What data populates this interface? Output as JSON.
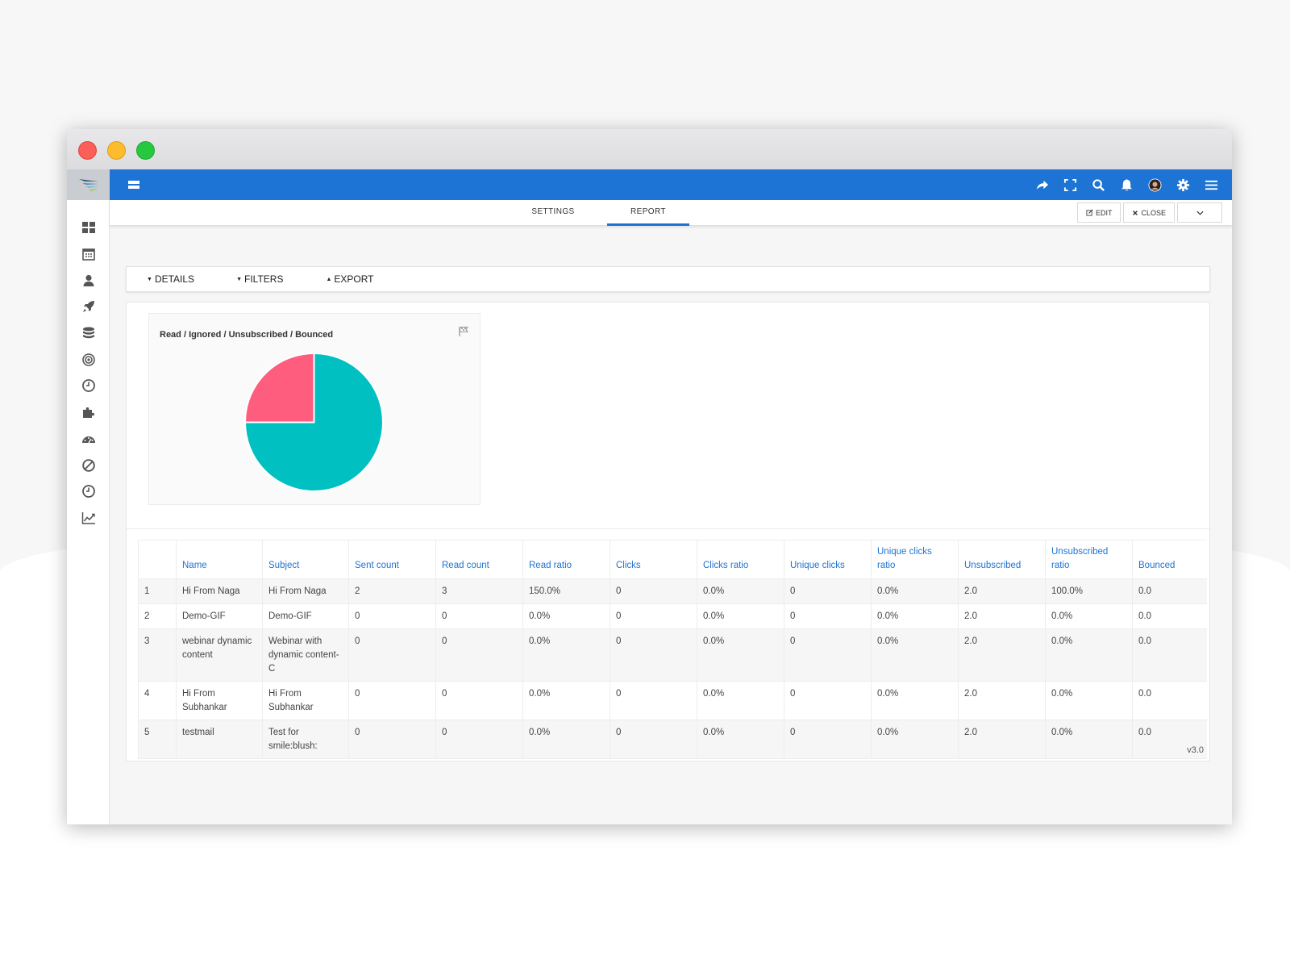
{
  "tabs": {
    "settings": "SETTINGS",
    "report": "REPORT"
  },
  "actions": {
    "edit": "EDIT",
    "close": "CLOSE"
  },
  "filters": {
    "details": "DETAILS",
    "filters": "FILTERS",
    "export": "EXPORT"
  },
  "chart_card": {
    "title": "Read / Ignored / Unsubscribed / Bounced"
  },
  "chart_data": {
    "type": "pie",
    "title": "Read / Ignored / Unsubscribed / Bounced",
    "slices": [
      {
        "value": 75,
        "color": "#00c0c2"
      },
      {
        "value": 25,
        "color": "#ff5d7e"
      }
    ]
  },
  "table": {
    "headers": [
      "",
      "Name",
      "Subject",
      "Sent count",
      "Read count",
      "Read ratio",
      "Clicks",
      "Clicks ratio",
      "Unique clicks",
      "Unique clicks ratio",
      "Unsubscribed",
      "Unsubscribed ratio",
      "Bounced"
    ],
    "rows": [
      [
        "1",
        "Hi From Naga",
        "Hi From Naga",
        "2",
        "3",
        "150.0%",
        "0",
        "0.0%",
        "0",
        "0.0%",
        "2.0",
        "100.0%",
        "0.0"
      ],
      [
        "2",
        "Demo-GIF",
        "Demo-GIF",
        "0",
        "0",
        "0.0%",
        "0",
        "0.0%",
        "0",
        "0.0%",
        "2.0",
        "0.0%",
        "0.0"
      ],
      [
        "3",
        "webinar dynamic content",
        "Webinar with dynamic content-C",
        "0",
        "0",
        "0.0%",
        "0",
        "0.0%",
        "0",
        "0.0%",
        "2.0",
        "0.0%",
        "0.0"
      ],
      [
        "4",
        "Hi From Subhankar",
        "Hi From Subhankar",
        "0",
        "0",
        "0.0%",
        "0",
        "0.0%",
        "0",
        "0.0%",
        "2.0",
        "0.0%",
        "0.0"
      ],
      [
        "5",
        "testmail",
        "Test for smile:blush:",
        "0",
        "0",
        "0.0%",
        "0",
        "0.0%",
        "0",
        "0.0%",
        "2.0",
        "0.0%",
        "0.0"
      ]
    ]
  },
  "footer": {
    "version": "v3.0"
  },
  "colors": {
    "accent": "#1d74d4",
    "pie_read": "#00c0c2",
    "pie_other": "#ff5d7e"
  },
  "icons": {
    "sidebar": [
      "dashboard-icon",
      "calendar-icon",
      "user-icon",
      "rocket-icon",
      "database-icon",
      "target-icon",
      "clock-icon",
      "puzzle-icon",
      "gauge-icon",
      "block-icon",
      "history-icon",
      "line-chart-icon"
    ],
    "topbar": [
      "share-icon",
      "fullscreen-icon",
      "search-icon",
      "bell-icon",
      "avatar",
      "gear-icon",
      "hamburger-icon"
    ]
  }
}
